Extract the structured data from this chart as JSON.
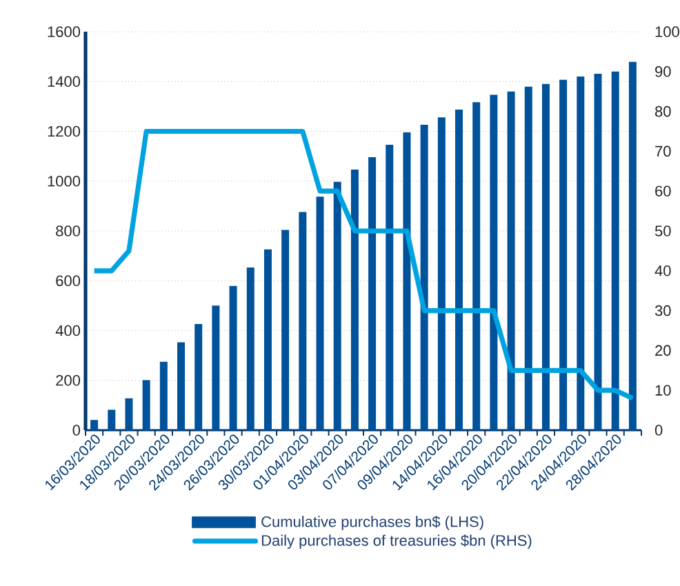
{
  "chart_data": {
    "type": "bar",
    "categories": [
      "16/03/2020",
      null,
      "18/03/2020",
      null,
      "20/03/2020",
      null,
      "24/03/2020",
      null,
      "26/03/2020",
      null,
      "30/03/2020",
      null,
      "01/04/2020",
      null,
      "03/04/2020",
      null,
      "07/04/2020",
      null,
      "09/04/2020",
      null,
      "14/04/2020",
      null,
      "16/04/2020",
      null,
      "20/04/2020",
      null,
      "22/04/2020",
      null,
      "24/04/2020",
      null,
      "28/04/2020",
      null
    ],
    "series": [
      {
        "name": "Cumulative purchases bn$ (LHS)",
        "color": "#00529b",
        "values": [
          41,
          82,
          128,
          201,
          275,
          353,
          426,
          500,
          579,
          653,
          726,
          804,
          876,
          938,
          997,
          1046,
          1096,
          1146,
          1196,
          1226,
          1256,
          1287,
          1317,
          1347,
          1360,
          1379,
          1390,
          1407,
          1420,
          1431,
          1440,
          1479
        ]
      },
      {
        "name": "Daily purchases of treasuries $bn (RHS)",
        "type": "line",
        "axis": "y2",
        "color": "#00a3e0",
        "values": [
          40,
          40,
          45,
          75,
          75,
          75,
          75,
          75,
          75,
          75,
          75,
          75,
          75,
          60,
          60,
          50,
          50,
          50,
          50,
          30,
          30,
          30,
          30,
          30,
          15,
          15,
          15,
          15,
          15,
          10,
          10,
          8
        ]
      }
    ],
    "ylim": [
      0,
      1600
    ],
    "yticks": [
      0,
      200,
      400,
      600,
      800,
      1000,
      1200,
      1400,
      1600
    ],
    "y2lim": [
      0,
      100
    ],
    "y2ticks": [
      0,
      10,
      20,
      30,
      40,
      50,
      60,
      70,
      80,
      90,
      100
    ],
    "grid": "y",
    "legend": "bottom"
  }
}
